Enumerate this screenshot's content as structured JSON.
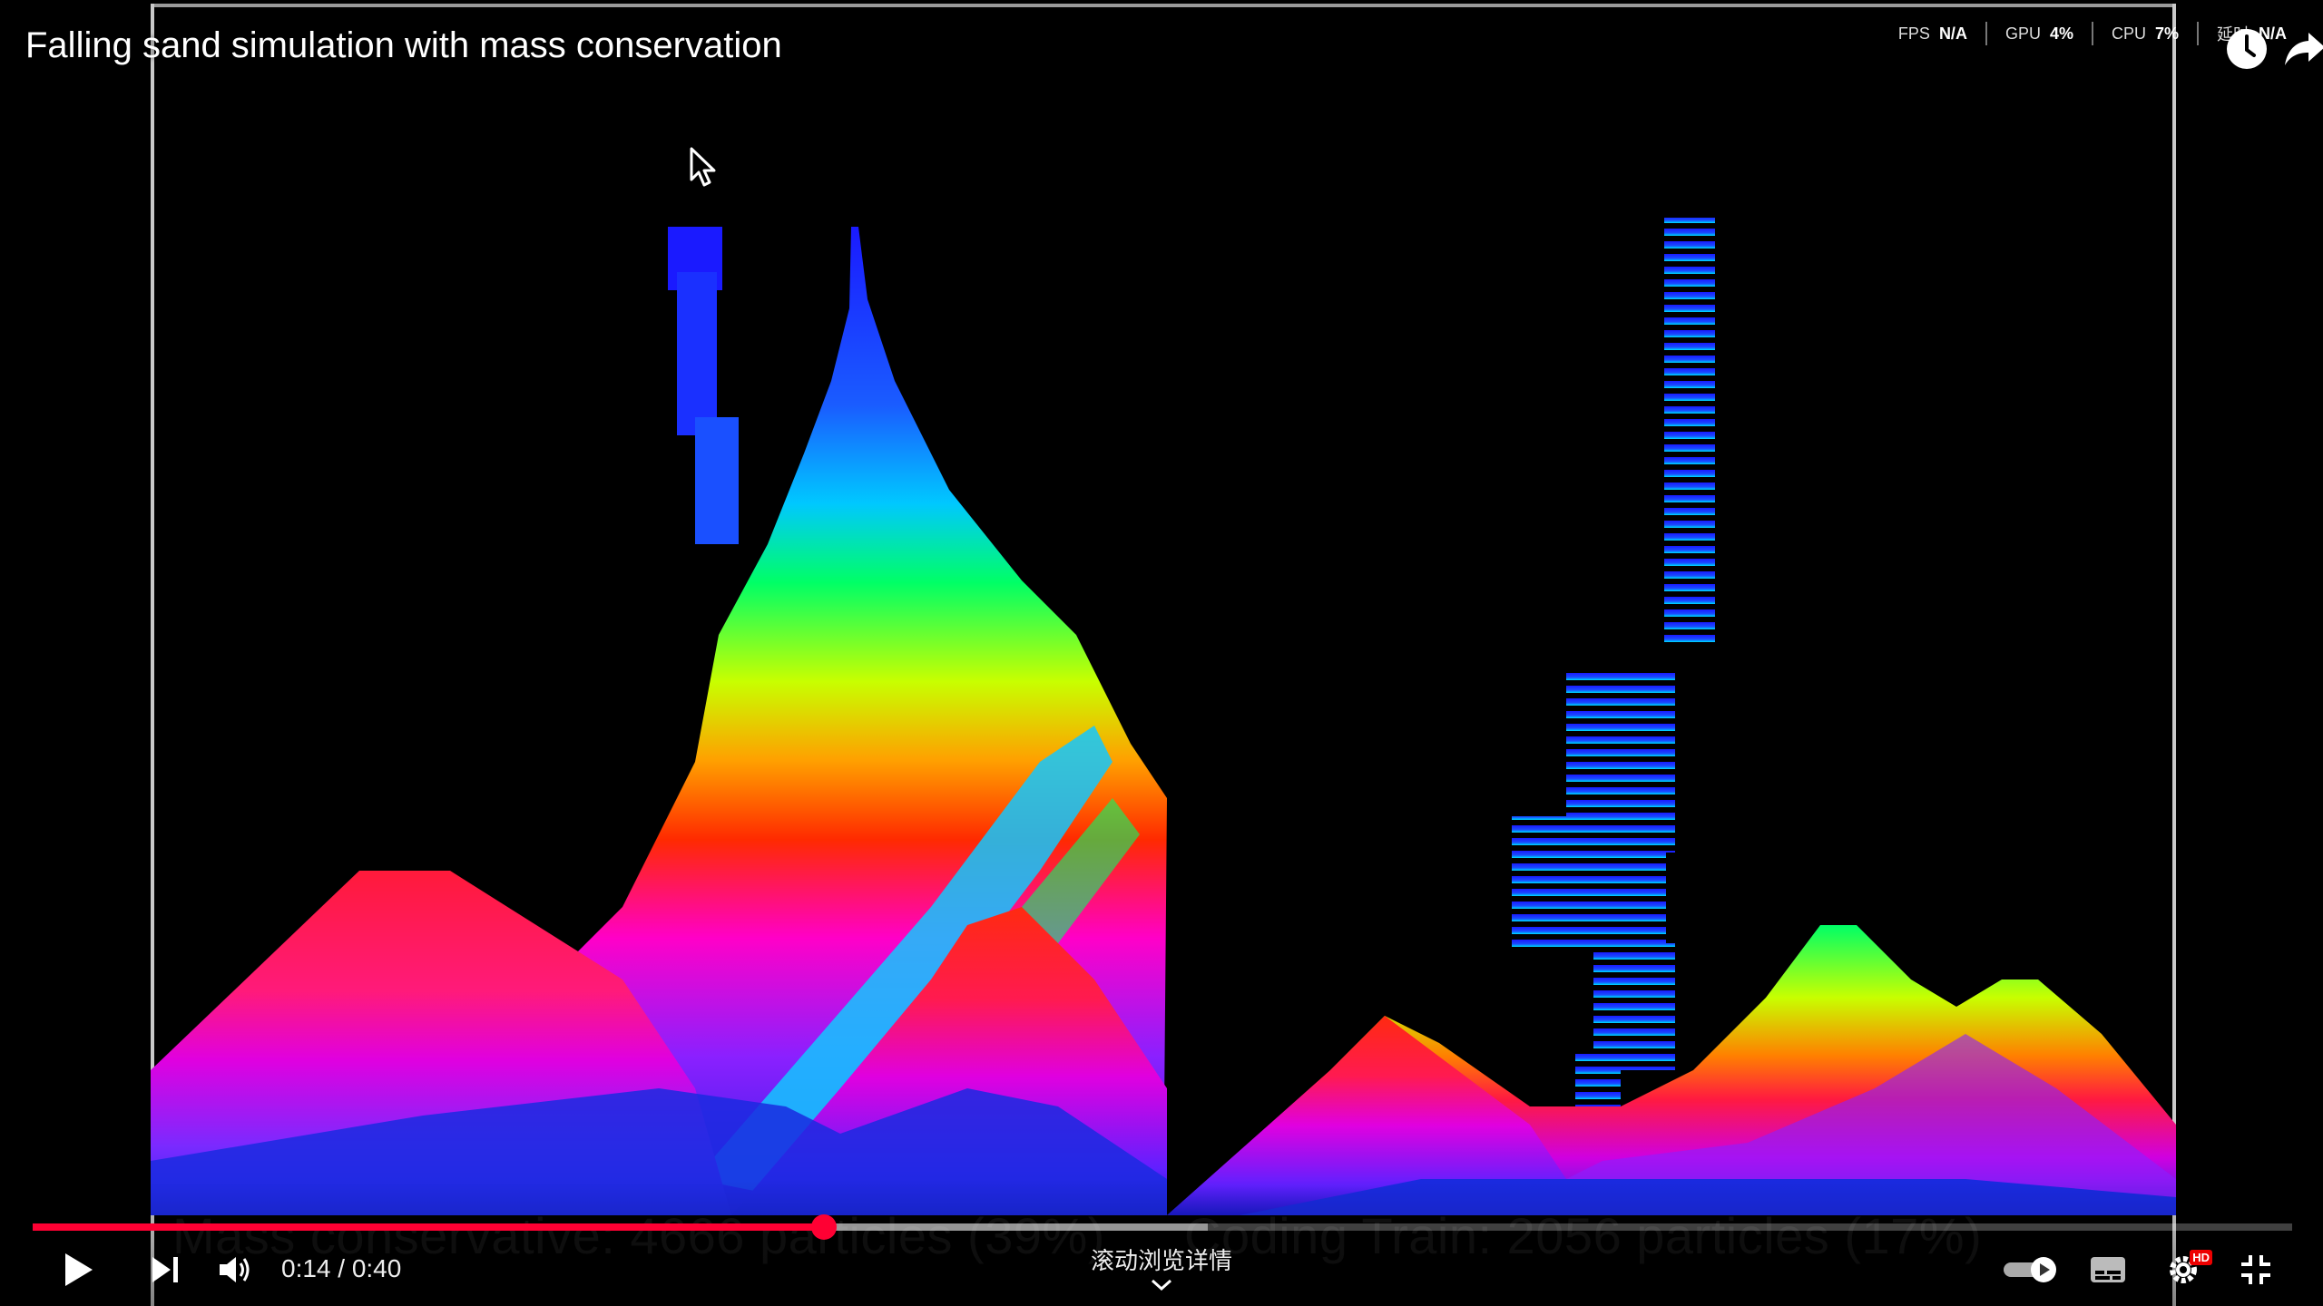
{
  "video": {
    "title": "Falling sand simulation with mass conservation",
    "caption_left": "Mass conservative: 4666 particles (39%)",
    "caption_right": "Coding Train: 2056 particles (17%)"
  },
  "stats": {
    "fps_label": "FPS",
    "fps_value": "N/A",
    "gpu_label": "GPU",
    "gpu_value": "4%",
    "cpu_label": "CPU",
    "cpu_value": "7%",
    "latency_label": "延时",
    "latency_value": "N/A"
  },
  "player": {
    "time_display": "0:14 / 0:40",
    "progress_fraction": 0.35,
    "buffered_fraction": 0.52,
    "scroll_hint": "滚动浏览详情",
    "hd_badge": "HD"
  },
  "icons": {
    "watch_later": "clock-icon",
    "share": "share-icon",
    "play": "play-icon",
    "next": "next-icon",
    "volume": "volume-icon",
    "autoplay": "autoplay-toggle-icon",
    "subtitles": "subtitles-icon",
    "settings": "gear-icon",
    "fullscreen": "exit-fullscreen-icon"
  },
  "colors": {
    "progress_played": "#ff0033",
    "background": "#000000"
  }
}
